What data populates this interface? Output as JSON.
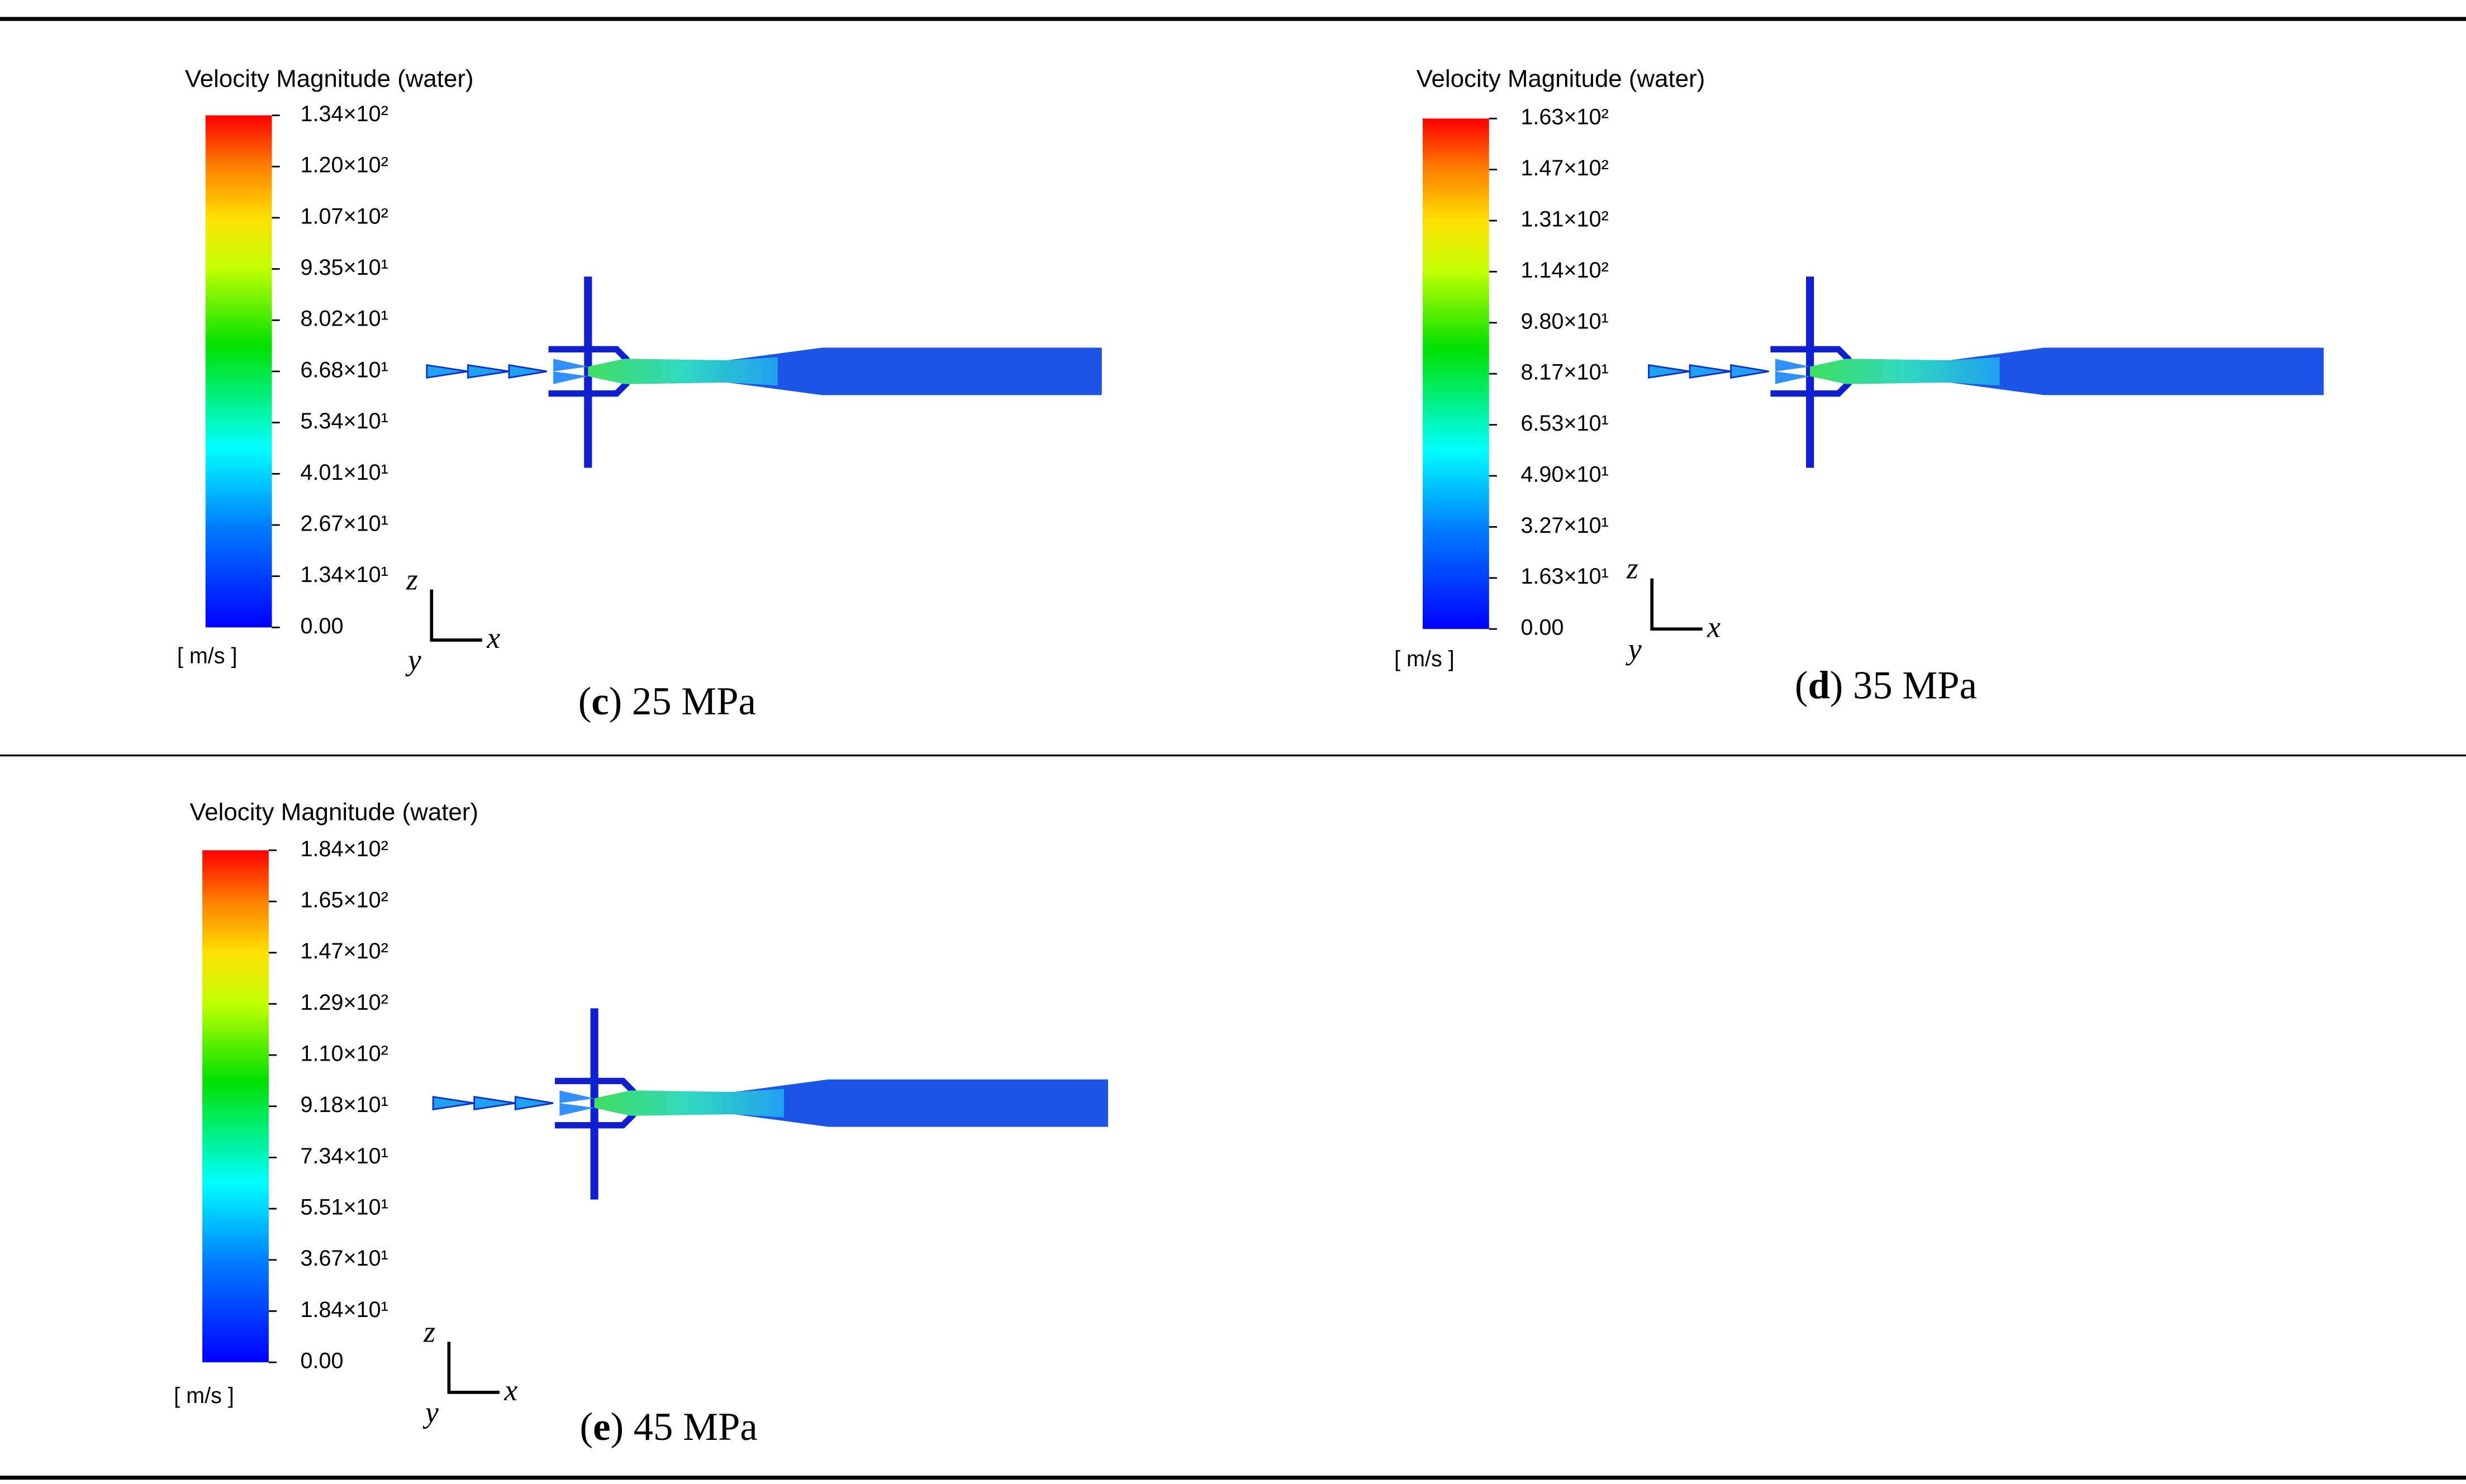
{
  "panels": [
    {
      "legend_title": "Velocity Magnitude (water)",
      "ticks": [
        "1.34×10²",
        "1.20×10²",
        "1.07×10²",
        "9.35×10¹",
        "8.02×10¹",
        "6.68×10¹",
        "5.34×10¹",
        "4.01×10¹",
        "2.67×10¹",
        "1.34×10¹",
        "0.00"
      ],
      "unit": "[ m/s ]",
      "axis_labels": {
        "z": "z",
        "y": "y",
        "x": "x"
      },
      "caption": [
        "(",
        "c",
        ") 25 MPa"
      ]
    },
    {
      "legend_title": "Velocity Magnitude (water)",
      "ticks": [
        "1.63×10²",
        "1.47×10²",
        "1.31×10²",
        "1.14×10²",
        "9.80×10¹",
        "8.17×10¹",
        "6.53×10¹",
        "4.90×10¹",
        "3.27×10¹",
        "1.63×10¹",
        "0.00"
      ],
      "unit": "[ m/s ]",
      "axis_labels": {
        "z": "z",
        "y": "y",
        "x": "x"
      },
      "caption": [
        "(",
        "d",
        ") 35 MPa"
      ]
    },
    {
      "legend_title": "Velocity Magnitude (water)",
      "ticks": [
        "1.84×10²",
        "1.65×10²",
        "1.47×10²",
        "1.29×10²",
        "1.10×10²",
        "9.18×10¹",
        "7.34×10¹",
        "5.51×10¹",
        "3.67×10¹",
        "1.84×10¹",
        "0.00"
      ],
      "unit": "[ m/s ]",
      "axis_labels": {
        "z": "z",
        "y": "y",
        "x": "x"
      },
      "caption": [
        "(",
        "e",
        ") 45 MPa"
      ]
    }
  ]
}
